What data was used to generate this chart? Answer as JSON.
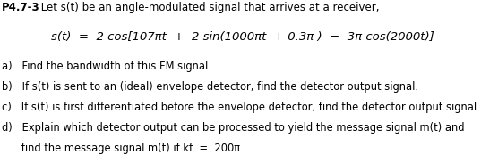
{
  "title_bold": "P4.7-3",
  "title_rest": " Let s(t) be an angle-modulated signal that arrives at a receiver,",
  "eq_line": "s(t)  =  2 cos[107πt  +  2 sin(1000πt  + 0.3π )  −  3π cos(2000t)]",
  "item_a": "a)   Find the bandwidth of this FM signal.",
  "item_b": "b)   If s(t) is sent to an (ideal) envelope detector, find the detector output signal.",
  "item_c": "c)   If s(t) is first differentiated before the envelope detector, find the detector output signal.",
  "item_d1": "d)   Explain which detector output can be processed to yield the message signal m(t) and",
  "item_d2": "      find the message signal m(t) if kf  =  200π.",
  "bg_color": "#ffffff",
  "text_color": "#000000",
  "fs_title": 8.5,
  "fs_eq": 9.5,
  "fs_items": 8.3
}
